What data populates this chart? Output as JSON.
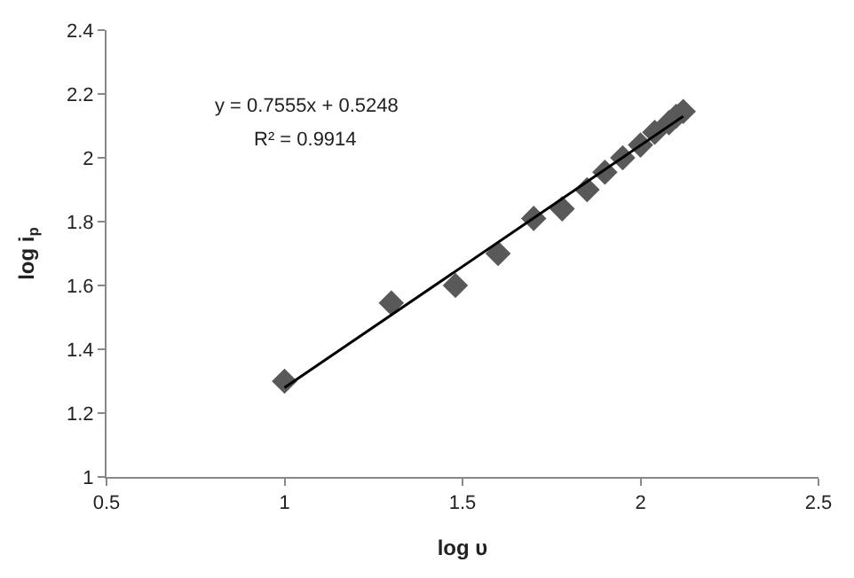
{
  "chart_data": {
    "type": "scatter",
    "xlabel": "log υ",
    "ylabel": "log i$_{p}$",
    "xlim": [
      0.5,
      2.5
    ],
    "xticks": [
      0.5,
      1,
      1.5,
      2,
      2.5
    ],
    "ylim": [
      1,
      2.4
    ],
    "yticks": [
      1,
      1.2,
      1.4,
      1.6,
      1.8,
      2,
      2.2,
      2.4
    ],
    "marker": "diamond",
    "series": [
      {
        "color": "#595959",
        "x": [
          1,
          1.3,
          1.48,
          1.6,
          1.7,
          1.78,
          1.85,
          1.9,
          1.95,
          2.0,
          2.04,
          2.08,
          2.1,
          2.12
        ],
        "values": [
          1.3,
          1.545,
          1.6,
          1.7,
          1.81,
          1.84,
          1.9,
          1.955,
          2.0,
          2.04,
          2.08,
          2.11,
          2.13,
          2.145
        ]
      },
      {
        "type": "line",
        "color": "#000000",
        "line_style": "solid",
        "marker": "none",
        "x": [
          1,
          2.12
        ],
        "values": [
          1.28,
          2.13
        ]
      }
    ],
    "annotations": [
      "y = 0.7555x + 0.5248",
      "R² = 0.9914"
    ]
  }
}
